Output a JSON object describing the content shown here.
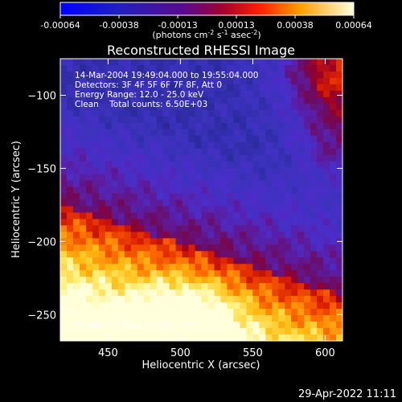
{
  "chart_data": {
    "type": "heatmap",
    "title": "Reconstructed RHESSI Image",
    "xlabel": "Heliocentric X (arcsec)",
    "ylabel": "Heliocentric Y (arcsec)",
    "xlim": [
      417,
      612
    ],
    "ylim": [
      -268,
      -75
    ],
    "xticks": [
      450,
      500,
      550,
      600
    ],
    "yticks": [
      -100,
      -150,
      -200,
      -250
    ],
    "colorbar": {
      "range": [
        -0.00064,
        0.00064
      ],
      "ticks": [
        "-0.00064",
        "-0.00038",
        "-0.00013",
        "0.00013",
        "0.00038",
        "0.00064"
      ],
      "unit_parts": [
        "(photons cm",
        "-2",
        " s",
        "-1",
        " asec",
        "-2",
        ")"
      ]
    },
    "annotations": [
      "14-Mar-2004 19:49:04.000 to 19:55:04.000",
      "Detectors: 3F 4F 5F 6F 7F 8F, Att 0",
      "Energy Range: 12.0 - 25.0 keV",
      "Clean    Total counts: 6.50E+03"
    ],
    "peak_label": "Position of Peak = [505, -258]",
    "grid": false
  },
  "footer": {
    "date": "29-Apr-2022 11:11"
  }
}
